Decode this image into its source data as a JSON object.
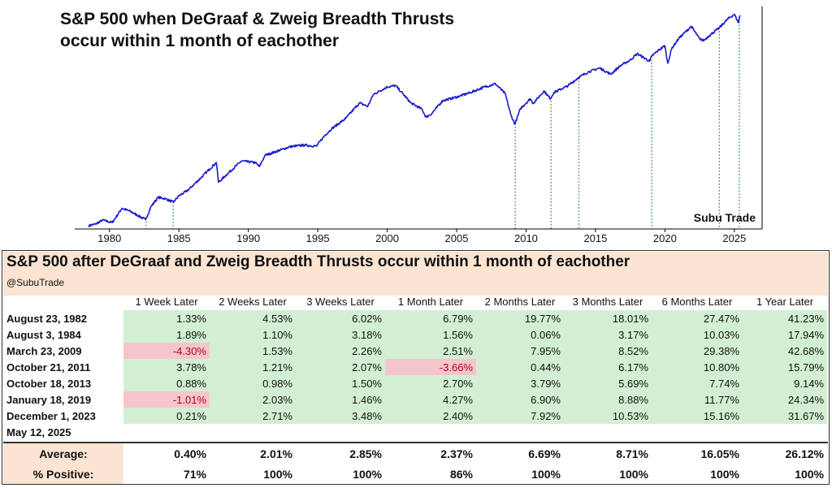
{
  "chart_data": {
    "type": "line",
    "title": "S&P 500 when DeGraaf & Zweig Breadth Thrusts\noccur within 1 month of eachother",
    "xlabel": "",
    "ylabel": "",
    "y_scale": "log",
    "xlim": [
      1977.5,
      2027.0
    ],
    "ylim": [
      90,
      7000
    ],
    "x_ticks": [
      "1980",
      "1985",
      "1990",
      "1995",
      "2000",
      "2005",
      "2010",
      "2015",
      "2020",
      "2025"
    ],
    "line_color": "#1a1acc",
    "marker_color": "#2a8a2a",
    "grid": false,
    "series": [
      {
        "values": [
          [
            1978.5,
            96
          ],
          [
            1979.0,
            99
          ],
          [
            1979.5,
            107
          ],
          [
            1980.2,
            102
          ],
          [
            1980.9,
            135
          ],
          [
            1981.5,
            127
          ],
          [
            1982.0,
            118
          ],
          [
            1982.6,
            108
          ],
          [
            1983.0,
            140
          ],
          [
            1983.5,
            167
          ],
          [
            1984.0,
            163
          ],
          [
            1984.6,
            152
          ],
          [
            1985.0,
            172
          ],
          [
            1985.6,
            190
          ],
          [
            1986.0,
            210
          ],
          [
            1986.6,
            246
          ],
          [
            1987.2,
            290
          ],
          [
            1987.7,
            330
          ],
          [
            1987.85,
            224
          ],
          [
            1988.5,
            265
          ],
          [
            1989.5,
            340
          ],
          [
            1990.5,
            330
          ],
          [
            1990.8,
            305
          ],
          [
            1991.2,
            380
          ],
          [
            1992.0,
            410
          ],
          [
            1993.0,
            450
          ],
          [
            1994.0,
            465
          ],
          [
            1994.9,
            455
          ],
          [
            1995.5,
            560
          ],
          [
            1996.0,
            640
          ],
          [
            1997.0,
            780
          ],
          [
            1998.0,
            1060
          ],
          [
            1998.6,
            990
          ],
          [
            1999.0,
            1250
          ],
          [
            2000.0,
            1450
          ],
          [
            2000.6,
            1490
          ],
          [
            2001.0,
            1320
          ],
          [
            2001.7,
            1060
          ],
          [
            2002.5,
            940
          ],
          [
            2002.8,
            800
          ],
          [
            2003.2,
            860
          ],
          [
            2004.0,
            1110
          ],
          [
            2005.0,
            1190
          ],
          [
            2006.0,
            1300
          ],
          [
            2007.0,
            1450
          ],
          [
            2007.8,
            1540
          ],
          [
            2008.5,
            1270
          ],
          [
            2008.9,
            840
          ],
          [
            2009.2,
            700
          ],
          [
            2009.6,
            950
          ],
          [
            2010.3,
            1150
          ],
          [
            2010.5,
            1050
          ],
          [
            2011.3,
            1340
          ],
          [
            2011.75,
            1150
          ],
          [
            2012.0,
            1300
          ],
          [
            2013.0,
            1480
          ],
          [
            2013.8,
            1750
          ],
          [
            2014.5,
            1950
          ],
          [
            2015.3,
            2100
          ],
          [
            2016.1,
            1860
          ],
          [
            2016.8,
            2200
          ],
          [
            2017.5,
            2450
          ],
          [
            2018.0,
            2780
          ],
          [
            2018.9,
            2400
          ],
          [
            2019.05,
            2650
          ],
          [
            2019.5,
            2950
          ],
          [
            2020.0,
            3250
          ],
          [
            2020.2,
            2300
          ],
          [
            2020.5,
            3100
          ],
          [
            2021.0,
            3750
          ],
          [
            2021.9,
            4750
          ],
          [
            2022.5,
            3700
          ],
          [
            2022.8,
            3600
          ],
          [
            2023.2,
            3970
          ],
          [
            2023.9,
            4590
          ],
          [
            2024.5,
            5450
          ],
          [
            2025.0,
            6000
          ],
          [
            2025.3,
            5100
          ],
          [
            2025.4,
            5900
          ]
        ]
      }
    ],
    "event_markers": [
      1982.64,
      1984.59,
      2009.22,
      2011.8,
      2013.8,
      2019.05,
      2023.92,
      2025.36
    ]
  },
  "watermark": "Subu Trade",
  "table": {
    "title": "S&P 500 after DeGraaf and Zweig Breadth Thrusts occur within 1 month of eachother",
    "handle": "@SubuTrade",
    "columns": [
      "1 Week Later",
      "2 Weeks Later",
      "3 Weeks Later",
      "1 Month Later",
      "2 Months Later",
      "3 Months Later",
      "6 Months Later",
      "1 Year Later"
    ],
    "rows": [
      {
        "date": "August 23, 1982",
        "values": [
          "1.33%",
          "4.53%",
          "6.02%",
          "6.79%",
          "19.77%",
          "18.01%",
          "27.47%",
          "41.23%"
        ]
      },
      {
        "date": "August 3, 1984",
        "values": [
          "1.89%",
          "1.10%",
          "3.18%",
          "1.56%",
          "0.06%",
          "3.17%",
          "10.03%",
          "17.94%"
        ]
      },
      {
        "date": "March 23, 2009",
        "values": [
          "-4.30%",
          "1.53%",
          "2.26%",
          "2.51%",
          "7.95%",
          "8.52%",
          "29.38%",
          "42.68%"
        ]
      },
      {
        "date": "October 21, 2011",
        "values": [
          "3.78%",
          "1.21%",
          "2.07%",
          "-3.66%",
          "0.44%",
          "6.17%",
          "10.80%",
          "15.79%"
        ]
      },
      {
        "date": "October 18, 2013",
        "values": [
          "0.88%",
          "0.98%",
          "1.50%",
          "2.70%",
          "3.79%",
          "5.69%",
          "7.74%",
          "9.14%"
        ]
      },
      {
        "date": "January 18, 2019",
        "values": [
          "-1.01%",
          "2.03%",
          "1.46%",
          "4.27%",
          "6.90%",
          "8.88%",
          "11.77%",
          "24.34%"
        ]
      },
      {
        "date": "December 1, 2023",
        "values": [
          "0.21%",
          "2.71%",
          "3.48%",
          "2.40%",
          "7.92%",
          "10.53%",
          "15.16%",
          "31.67%"
        ]
      },
      {
        "date": "May 12, 2025",
        "values": [
          "",
          "",
          "",
          "",
          "",
          "",
          "",
          ""
        ]
      }
    ],
    "summary": [
      {
        "label": "Average:",
        "values": [
          "0.40%",
          "2.01%",
          "2.85%",
          "2.37%",
          "6.69%",
          "8.71%",
          "16.05%",
          "26.12%"
        ]
      },
      {
        "label": "% Positive:",
        "values": [
          "71%",
          "100%",
          "100%",
          "86%",
          "100%",
          "100%",
          "100%",
          "100%"
        ]
      }
    ]
  },
  "colors": {
    "positive_cell": "#d3efd3",
    "negative_cell": "#f4c6cb",
    "header_band": "#fce4d2"
  }
}
